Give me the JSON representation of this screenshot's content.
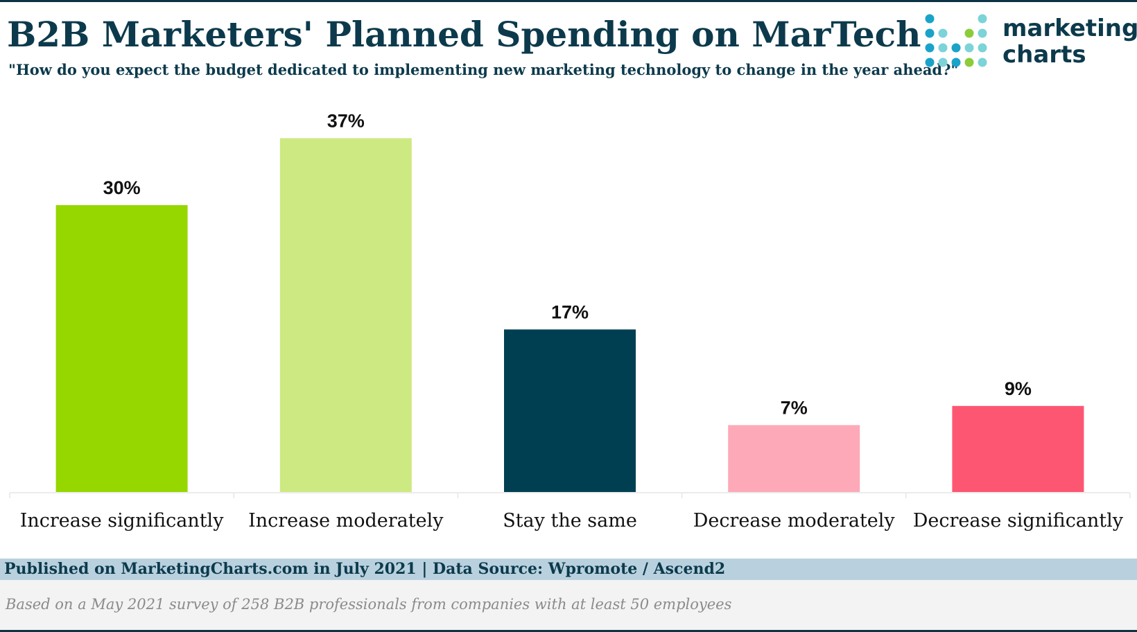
{
  "header": {
    "title": "B2B Marketers' Planned Spending on MarTech",
    "subtitle": "\"How do you expect the budget dedicated to implementing new marketing technology to change in the year ahead?\""
  },
  "logo": {
    "line1": "marketing",
    "line2": "charts",
    "dot_colors": [
      "#1aa3c9",
      "#7cd3d8",
      "#8ccc3a"
    ]
  },
  "chart_data": {
    "type": "bar",
    "title": "B2B Marketers' Planned Spending on MarTech",
    "xlabel": "",
    "ylabel": "",
    "ylim": [
      0,
      40
    ],
    "grid": false,
    "categories": [
      "Increase significantly",
      "Increase moderately",
      "Stay the same",
      "Decrease moderately",
      "Decrease significantly"
    ],
    "values": [
      30,
      37,
      17,
      7,
      9
    ],
    "value_labels": [
      "30%",
      "37%",
      "17%",
      "7%",
      "9%"
    ],
    "colors": [
      "#96d700",
      "#cde982",
      "#003f52",
      "#fda9b8",
      "#fd5673"
    ]
  },
  "footer": {
    "source": "Published on MarketingCharts.com in July 2021 | Data Source: Wpromote / Ascend2",
    "note": "Based on a May 2021 survey of 258 B2B professionals from companies with at least 50 employees"
  }
}
